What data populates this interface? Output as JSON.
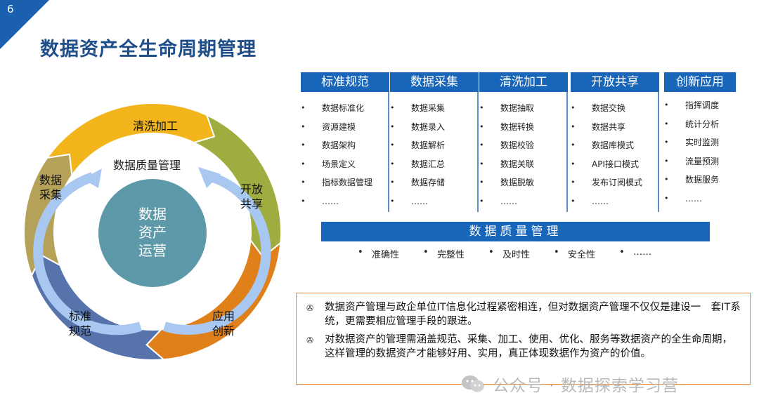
{
  "page_number": "6",
  "title": "数据资产全生命周期管理",
  "cycle": {
    "center": "数据\n资产\n运营",
    "inner": "数据质量管理",
    "segments": [
      {
        "label": "清洗加工",
        "color": "#f2b51b"
      },
      {
        "label": "开放\n共享",
        "color": "#9fac3f"
      },
      {
        "label": "应用\n创新",
        "color": "#e0801a"
      },
      {
        "label": "标准\n规范",
        "color": "#5674ab"
      },
      {
        "label": "数据\n采集",
        "color": "#b5a158"
      }
    ]
  },
  "columns": [
    {
      "header": "标准规范",
      "items": [
        "数据标准化",
        "资源建模",
        "数据架构",
        "场景定义",
        "指标数据管理",
        "……"
      ]
    },
    {
      "header": "数据采集",
      "items": [
        "数据采集",
        "数据录入",
        "数据解析",
        "数据汇总",
        "数据存储",
        "……"
      ]
    },
    {
      "header": "清洗加工",
      "items": [
        "数据抽取",
        "数据转换",
        "数据校验",
        "数据关联",
        "数据脱敏",
        "……"
      ]
    },
    {
      "header": "开放共享",
      "items": [
        "数据交换",
        "数据共享",
        "数据库模式",
        "API接口模式",
        "发布订阅模式",
        "……"
      ]
    },
    {
      "header": "创新应用",
      "items": [
        "指挥调度",
        "统计分析",
        "实时监测",
        "流量预测",
        "数据服务",
        "……"
      ]
    }
  ],
  "quality": {
    "title": "数据质量管理",
    "items": [
      "准确性",
      "完整性",
      "及时性",
      "安全性",
      "……"
    ]
  },
  "notes": [
    "数据资产管理与政企单位IT信息化过程紧密相连，但对数据资产管理不仅仅是建设一　套IT系统，更需要相应管理手段的跟进。",
    "对数据资产的管理需涵盖规范、采集、加工、使用、优化、服务等数据资产的全生命周期，这样管理的数据资产才能够好用、实用，真正体现数据作为资产的价值。"
  ],
  "note_mark": "✇",
  "watermark": "公众号 · 数据探索学习营",
  "colors": {
    "brand_blue": "#1866b9",
    "title_blue": "#1f4f8a",
    "corner_blue": "#1b5faf",
    "note_border": "#e7883a",
    "center": "#5d99a8"
  }
}
